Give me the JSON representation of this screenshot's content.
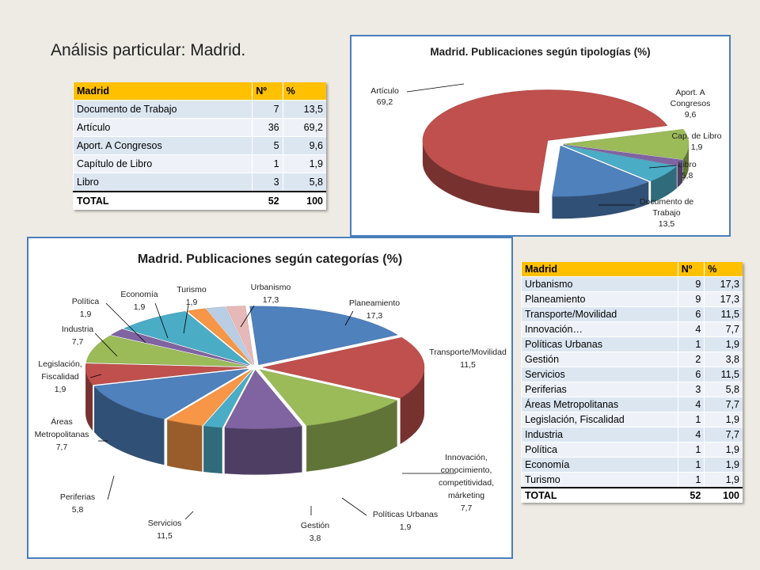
{
  "slide": {
    "title": "Análisis particular: Madrid."
  },
  "table1": {
    "headers": [
      "Madrid",
      "Nº",
      "%"
    ],
    "rows": [
      [
        "Documento de Trabajo",
        "7",
        "13,5"
      ],
      [
        "Artículo",
        "36",
        "69,2"
      ],
      [
        "Aport. A Congresos",
        "5",
        "9,6"
      ],
      [
        "Capítulo de Libro",
        "1",
        "1,9"
      ],
      [
        "Libro",
        "3",
        "5,8"
      ]
    ],
    "total": [
      "TOTAL",
      "52",
      "100"
    ]
  },
  "table2": {
    "headers": [
      "Madrid",
      "Nº",
      "%"
    ],
    "rows": [
      [
        "Urbanismo",
        "9",
        "17,3"
      ],
      [
        "Planeamiento",
        "9",
        "17,3"
      ],
      [
        "Transporte/Movilidad",
        "6",
        "11,5"
      ],
      [
        "Innovación…",
        "4",
        "7,7"
      ],
      [
        "Políticas Urbanas",
        "1",
        "1,9"
      ],
      [
        "Gestión",
        "2",
        "3,8"
      ],
      [
        "Servicios",
        "6",
        "11,5"
      ],
      [
        "Periferias",
        "3",
        "5,8"
      ],
      [
        "Áreas Metropolitanas",
        "4",
        "7,7"
      ],
      [
        "Legislación, Fiscalidad",
        "1",
        "1,9"
      ],
      [
        "Industria",
        "4",
        "7,7"
      ],
      [
        "Política",
        "1",
        "1,9"
      ],
      [
        "Economía",
        "1",
        "1,9"
      ],
      [
        "Turismo",
        "1",
        "1,9"
      ]
    ],
    "total": [
      "TOTAL",
      "52",
      "100"
    ]
  },
  "chart_data": [
    {
      "type": "pie",
      "title": "Madrid. Publicaciones según tipologías (%)",
      "categories": [
        "Documento de Trabajo",
        "Artículo",
        "Aport. A Congresos",
        "Cap. de Libro",
        "Libro"
      ],
      "labels": [
        [
          "Documento de",
          "Trabajo",
          "13,5"
        ],
        [
          "Artículo",
          "69,2"
        ],
        [
          "Aport. A",
          "Congresos",
          "9,6"
        ],
        [
          "Cap. de Libro",
          "1,9"
        ],
        [
          "Libro",
          "5,8"
        ]
      ],
      "values": [
        13.5,
        69.2,
        9.6,
        1.9,
        5.8
      ],
      "colors": [
        "#4f81bd",
        "#c0504d",
        "#9bbb59",
        "#8064a2",
        "#4bacc6"
      ],
      "style": "3d-exploded"
    },
    {
      "type": "pie",
      "title": "Madrid. Publicaciones según categorías (%)",
      "categories": [
        "Urbanismo",
        "Planeamiento",
        "Transporte/Movilidad",
        "Innovación, conocimiento, competitividad, márketing",
        "Políticas Urbanas",
        "Gestión",
        "Servicios",
        "Periferias",
        "Áreas Metropolitanas",
        "Legislación, Fiscalidad",
        "Industria",
        "Política",
        "Economía",
        "Turismo"
      ],
      "labels": [
        [
          "Urbanismo",
          "17,3"
        ],
        [
          "Planeamiento",
          "17,3"
        ],
        [
          "Transporte/Movilidad",
          "11,5"
        ],
        [
          "Innovación,",
          "conocimiento,",
          "competitividad,",
          "márketing",
          "7,7"
        ],
        [
          "Políticas Urbanas",
          "1,9"
        ],
        [
          "Gestión",
          "3,8"
        ],
        [
          "Servicios",
          "11,5"
        ],
        [
          "Periferias",
          "5,8"
        ],
        [
          "Áreas",
          "Metropolitanas",
          "7,7"
        ],
        [
          "Legislación,",
          "Fiscalidad",
          "1,9"
        ],
        [
          "Industria",
          "7,7"
        ],
        [
          "Política",
          "1,9"
        ],
        [
          "Economía",
          "1,9"
        ],
        [
          "Turismo",
          "1,9"
        ]
      ],
      "values": [
        17.3,
        17.3,
        11.5,
        7.7,
        1.9,
        3.8,
        11.5,
        5.8,
        7.7,
        1.9,
        7.7,
        1.9,
        1.9,
        1.9
      ],
      "colors": [
        "#4f81bd",
        "#c0504d",
        "#9bbb59",
        "#8064a2",
        "#4bacc6",
        "#f79646",
        "#4f81bd",
        "#c0504d",
        "#9bbb59",
        "#8064a2",
        "#4bacc6",
        "#f79646",
        "#b9cde5",
        "#e6b9b8"
      ],
      "style": "3d-exploded"
    }
  ]
}
